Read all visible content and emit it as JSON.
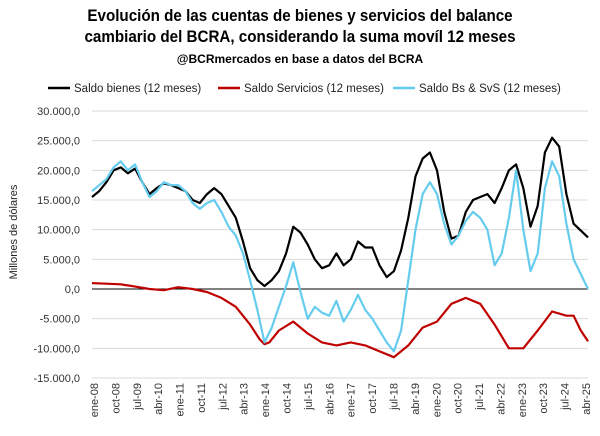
{
  "title_line1": "Evolución de las cuentas de bienes y servicios del balance",
  "title_line2": "cambiario del BCRA, considerando la suma movíl 12 meses",
  "subtitle": "@BCRmercados en base a datos del BCRA",
  "chart_data": {
    "type": "line",
    "ylabel": "Millones de dólares",
    "ylim": [
      -15000,
      30000
    ],
    "yticks": [
      30000,
      25000,
      20000,
      15000,
      10000,
      5000,
      0,
      -5000,
      -10000,
      -15000
    ],
    "ytick_labels": [
      "30.000,0",
      "25.000,0",
      "20.000,0",
      "15.000,0",
      "10.000,0",
      "5.000,0",
      "0,0",
      "-5.000,0",
      "-10.000,0",
      "-15.000,0"
    ],
    "xticks": [
      "ene-08",
      "oct-08",
      "jul-09",
      "abr-10",
      "ene-11",
      "oct-11",
      "jul-12",
      "abr-13",
      "ene-14",
      "oct-14",
      "jul-15",
      "abr-16",
      "ene-17",
      "oct-17",
      "jul-18",
      "abr-19",
      "ene-20",
      "oct-20",
      "jul-21",
      "abr-22",
      "ene-23",
      "oct-23",
      "jul-24",
      "abr-25"
    ],
    "x_start": "ene-08",
    "x_end": "abr-25",
    "grid": true,
    "legend_position": "top",
    "series": [
      {
        "name": "Saldo bienes (12 meses)",
        "color": "#000000",
        "points": [
          [
            0,
            15500
          ],
          [
            3,
            16500
          ],
          [
            6,
            18000
          ],
          [
            9,
            20000
          ],
          [
            12,
            20500
          ],
          [
            15,
            19500
          ],
          [
            18,
            20300
          ],
          [
            21,
            18000
          ],
          [
            24,
            16000
          ],
          [
            27,
            17000
          ],
          [
            30,
            17800
          ],
          [
            33,
            17500
          ],
          [
            36,
            17000
          ],
          [
            39,
            16500
          ],
          [
            42,
            15000
          ],
          [
            45,
            14500
          ],
          [
            48,
            16000
          ],
          [
            51,
            17000
          ],
          [
            54,
            16000
          ],
          [
            57,
            14000
          ],
          [
            60,
            12000
          ],
          [
            63,
            8000
          ],
          [
            66,
            3500
          ],
          [
            69,
            1500
          ],
          [
            72,
            500
          ],
          [
            75,
            1500
          ],
          [
            78,
            3000
          ],
          [
            81,
            6000
          ],
          [
            84,
            10500
          ],
          [
            87,
            9500
          ],
          [
            90,
            7500
          ],
          [
            93,
            5000
          ],
          [
            96,
            3500
          ],
          [
            99,
            4000
          ],
          [
            102,
            6000
          ],
          [
            105,
            4000
          ],
          [
            108,
            5000
          ],
          [
            111,
            8000
          ],
          [
            114,
            7000
          ],
          [
            117,
            7000
          ],
          [
            120,
            4000
          ],
          [
            123,
            2000
          ],
          [
            126,
            3000
          ],
          [
            129,
            6500
          ],
          [
            132,
            12000
          ],
          [
            135,
            19000
          ],
          [
            138,
            22000
          ],
          [
            141,
            23000
          ],
          [
            144,
            20000
          ],
          [
            147,
            13000
          ],
          [
            150,
            8500
          ],
          [
            153,
            9000
          ],
          [
            156,
            13000
          ],
          [
            159,
            15000
          ],
          [
            162,
            15500
          ],
          [
            165,
            16000
          ],
          [
            168,
            14500
          ],
          [
            171,
            17000
          ],
          [
            174,
            20000
          ],
          [
            177,
            21000
          ],
          [
            180,
            17000
          ],
          [
            183,
            10500
          ],
          [
            186,
            14000
          ],
          [
            189,
            23000
          ],
          [
            192,
            25500
          ],
          [
            195,
            24000
          ],
          [
            198,
            16000
          ],
          [
            201,
            11000
          ],
          [
            207,
            8700
          ]
        ]
      },
      {
        "name": "Saldo Servicios (12 meses)",
        "color": "#c00000",
        "points": [
          [
            0,
            1000
          ],
          [
            6,
            900
          ],
          [
            12,
            800
          ],
          [
            18,
            400
          ],
          [
            24,
            0
          ],
          [
            30,
            -200
          ],
          [
            36,
            300
          ],
          [
            42,
            0
          ],
          [
            48,
            -500
          ],
          [
            54,
            -1500
          ],
          [
            60,
            -3000
          ],
          [
            66,
            -6000
          ],
          [
            70,
            -8500
          ],
          [
            72,
            -9300
          ],
          [
            74,
            -9000
          ],
          [
            78,
            -7000
          ],
          [
            84,
            -5500
          ],
          [
            87,
            -6500
          ],
          [
            90,
            -7500
          ],
          [
            96,
            -9000
          ],
          [
            102,
            -9500
          ],
          [
            108,
            -9000
          ],
          [
            114,
            -9500
          ],
          [
            120,
            -10500
          ],
          [
            126,
            -11500
          ],
          [
            132,
            -9500
          ],
          [
            138,
            -6500
          ],
          [
            144,
            -5500
          ],
          [
            150,
            -2500
          ],
          [
            156,
            -1500
          ],
          [
            162,
            -2500
          ],
          [
            168,
            -6000
          ],
          [
            174,
            -10000
          ],
          [
            180,
            -10000
          ],
          [
            186,
            -7000
          ],
          [
            192,
            -3800
          ],
          [
            198,
            -4500
          ],
          [
            201,
            -4500
          ],
          [
            204,
            -7000
          ],
          [
            207,
            -8800
          ]
        ]
      },
      {
        "name": "Saldo Bs & SvS (12 meses)",
        "color": "#66ccee",
        "points": [
          [
            0,
            16500
          ],
          [
            3,
            17500
          ],
          [
            6,
            18500
          ],
          [
            9,
            20500
          ],
          [
            12,
            21500
          ],
          [
            15,
            20000
          ],
          [
            18,
            21000
          ],
          [
            21,
            18000
          ],
          [
            24,
            15500
          ],
          [
            27,
            16500
          ],
          [
            30,
            18000
          ],
          [
            33,
            17500
          ],
          [
            36,
            17500
          ],
          [
            39,
            16500
          ],
          [
            42,
            14500
          ],
          [
            45,
            13500
          ],
          [
            48,
            14500
          ],
          [
            51,
            15000
          ],
          [
            54,
            13000
          ],
          [
            57,
            10500
          ],
          [
            60,
            9000
          ],
          [
            63,
            6000
          ],
          [
            66,
            1500
          ],
          [
            69,
            -3500
          ],
          [
            72,
            -9000
          ],
          [
            75,
            -6500
          ],
          [
            78,
            -3000
          ],
          [
            81,
            500
          ],
          [
            84,
            4500
          ],
          [
            87,
            -500
          ],
          [
            90,
            -5000
          ],
          [
            93,
            -3000
          ],
          [
            96,
            -4000
          ],
          [
            99,
            -4500
          ],
          [
            102,
            -2000
          ],
          [
            105,
            -5500
          ],
          [
            108,
            -3500
          ],
          [
            111,
            -1000
          ],
          [
            114,
            -3500
          ],
          [
            117,
            -5000
          ],
          [
            120,
            -7000
          ],
          [
            123,
            -9000
          ],
          [
            126,
            -10500
          ],
          [
            129,
            -7000
          ],
          [
            132,
            1500
          ],
          [
            135,
            10000
          ],
          [
            138,
            16000
          ],
          [
            141,
            18000
          ],
          [
            144,
            16000
          ],
          [
            147,
            11000
          ],
          [
            150,
            7500
          ],
          [
            153,
            9000
          ],
          [
            156,
            11500
          ],
          [
            159,
            13000
          ],
          [
            162,
            12000
          ],
          [
            165,
            10000
          ],
          [
            168,
            4000
          ],
          [
            171,
            6000
          ],
          [
            174,
            12000
          ],
          [
            177,
            20000
          ],
          [
            180,
            10000
          ],
          [
            183,
            3000
          ],
          [
            186,
            6000
          ],
          [
            189,
            17000
          ],
          [
            192,
            21500
          ],
          [
            195,
            19000
          ],
          [
            198,
            11000
          ],
          [
            201,
            5000
          ],
          [
            207,
            0
          ]
        ]
      }
    ]
  }
}
